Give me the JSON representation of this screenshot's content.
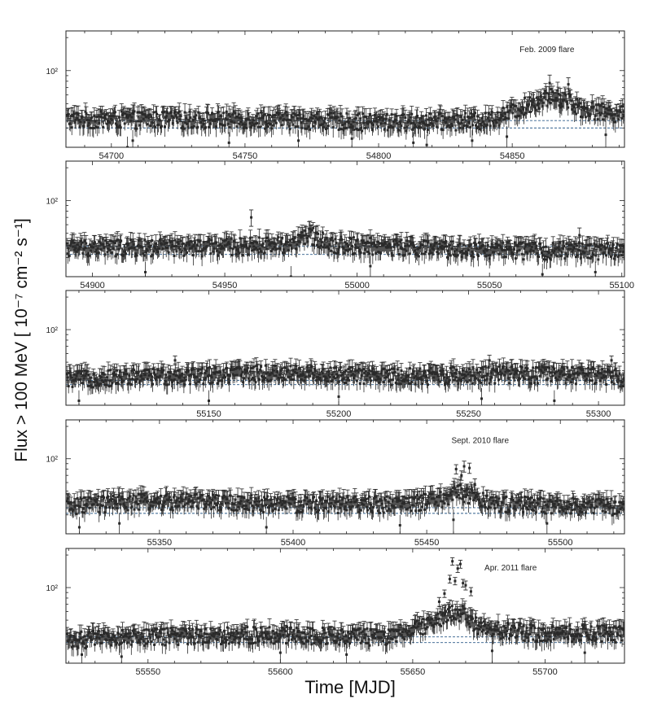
{
  "figure": {
    "ylabel": "Flux > 100 MeV [ 10⁻⁷ cm⁻² s⁻¹]",
    "xlabel": "Time [MJD]"
  },
  "colors": {
    "points": "#2a2a2a",
    "frame": "#222222",
    "dashed": "#2e5d8a"
  },
  "chart_data": [
    {
      "type": "scatter",
      "xlim": [
        54683,
        54892
      ],
      "ylog": true,
      "ytick_labels": [
        "10²"
      ],
      "ytick_values": [
        100
      ],
      "xticks": [
        54700,
        54750,
        54800,
        54850
      ],
      "annotation": "Feb. 2009 flare",
      "annotation_x": 54863,
      "annotation_y": 158,
      "dashed_levels": [
        35,
        30
      ],
      "baseline": [
        [
          54683,
          36
        ],
        [
          54760,
          36
        ],
        [
          54800,
          34
        ],
        [
          54840,
          35
        ],
        [
          54850,
          42
        ],
        [
          54858,
          52
        ],
        [
          54864,
          58
        ],
        [
          54870,
          55
        ],
        [
          54876,
          45
        ],
        [
          54892,
          40
        ]
      ],
      "flare_points": [
        [
          54864,
          77,
          14
        ],
        [
          54868,
          60,
          9
        ],
        [
          54871,
          75,
          11
        ],
        [
          54860,
          50,
          8
        ]
      ],
      "low_points": [
        [
          54706,
          20
        ],
        [
          54708,
          23
        ],
        [
          54744,
          22
        ],
        [
          54770,
          23
        ],
        [
          54790,
          24
        ],
        [
          54813,
          22
        ],
        [
          54818,
          21
        ],
        [
          54835,
          23
        ],
        [
          54848,
          25
        ],
        [
          54885,
          26
        ]
      ]
    },
    {
      "type": "scatter",
      "xlim": [
        54890,
        55101
      ],
      "ylog": true,
      "ytick_labels": [
        "10²"
      ],
      "ytick_values": [
        100
      ],
      "xticks": [
        54900,
        54950,
        55000,
        55050,
        55100
      ],
      "annotation": "",
      "annotation_x": 0,
      "annotation_y": 0,
      "dashed_levels": [
        38,
        32
      ],
      "baseline": [
        [
          54890,
          37
        ],
        [
          54940,
          37
        ],
        [
          54975,
          40
        ],
        [
          54983,
          48
        ],
        [
          54990,
          40
        ],
        [
          55030,
          36
        ],
        [
          55060,
          35
        ],
        [
          55101,
          35
        ]
      ],
      "flare_points": [
        [
          54960,
          70,
          12
        ],
        [
          55084,
          48,
          8
        ]
      ],
      "low_points": [
        [
          54920,
          22
        ],
        [
          54975,
          20
        ],
        [
          55005,
          25
        ],
        [
          55070,
          21
        ],
        [
          55090,
          22
        ]
      ]
    },
    {
      "type": "scatter",
      "xlim": [
        55095,
        55310
      ],
      "ylog": true,
      "ytick_labels": [
        "10²"
      ],
      "ytick_values": [
        100
      ],
      "xticks": [
        55150,
        55200,
        55250,
        55300
      ],
      "annotation": "",
      "annotation_x": 0,
      "annotation_y": 0,
      "dashed_levels": [
        34,
        31
      ],
      "baseline": [
        [
          55095,
          35
        ],
        [
          55140,
          38
        ],
        [
          55180,
          40
        ],
        [
          55220,
          37
        ],
        [
          55260,
          39
        ],
        [
          55300,
          38
        ],
        [
          55310,
          36
        ]
      ],
      "flare_points": [
        [
          55137,
          52,
          5
        ],
        [
          55258,
          52,
          6
        ],
        [
          55305,
          52,
          5
        ]
      ],
      "low_points": [
        [
          55100,
          22
        ],
        [
          55150,
          22
        ],
        [
          55200,
          24
        ],
        [
          55255,
          23
        ],
        [
          55283,
          22
        ]
      ]
    },
    {
      "type": "scatter",
      "xlim": [
        55315,
        55524
      ],
      "ylog": true,
      "ytick_labels": [
        "10²"
      ],
      "ytick_values": [
        100
      ],
      "xticks": [
        55350,
        55400,
        55450,
        55500
      ],
      "annotation": "Sept. 2010 flare",
      "annotation_x": 55470,
      "annotation_y": 150,
      "dashed_levels": [
        35,
        31
      ],
      "baseline": [
        [
          55315,
          36
        ],
        [
          55340,
          40
        ],
        [
          55360,
          40
        ],
        [
          55400,
          38
        ],
        [
          55440,
          38
        ],
        [
          55456,
          42
        ],
        [
          55462,
          50
        ],
        [
          55468,
          44
        ],
        [
          55475,
          38
        ],
        [
          55524,
          36
        ]
      ],
      "flare_points": [
        [
          55461,
          80,
          8
        ],
        [
          55464,
          85,
          10
        ],
        [
          55466,
          82,
          9
        ],
        [
          55463,
          70,
          7
        ],
        [
          55468,
          58,
          7
        ],
        [
          55465,
          52,
          6
        ]
      ],
      "low_points": [
        [
          55320,
          23
        ],
        [
          55335,
          25
        ],
        [
          55390,
          23
        ],
        [
          55440,
          24
        ],
        [
          55460,
          27
        ],
        [
          55495,
          25
        ]
      ]
    },
    {
      "type": "scatter",
      "xlim": [
        55519,
        55730
      ],
      "ylog": true,
      "ytick_labels": [
        "10²"
      ],
      "ytick_values": [
        100
      ],
      "xticks": [
        55550,
        55600,
        55650,
        55700
      ],
      "annotation": "Apr. 2011 flare",
      "annotation_x": 55687,
      "annotation_y": 155,
      "dashed_levels": [
        35,
        31
      ],
      "baseline": [
        [
          55519,
          33
        ],
        [
          55560,
          36
        ],
        [
          55600,
          37
        ],
        [
          55640,
          35
        ],
        [
          55655,
          44
        ],
        [
          55662,
          55
        ],
        [
          55668,
          60
        ],
        [
          55675,
          42
        ],
        [
          55700,
          38
        ],
        [
          55730,
          38
        ]
      ],
      "flare_points": [
        [
          55665,
          175,
          14
        ],
        [
          55667,
          150,
          12
        ],
        [
          55668,
          165,
          14
        ],
        [
          55664,
          120,
          10
        ],
        [
          55666,
          115,
          9
        ],
        [
          55670,
          105,
          10
        ],
        [
          55672,
          92,
          8
        ],
        [
          55669,
          110,
          9
        ],
        [
          55662,
          88,
          7
        ],
        [
          55660,
          74,
          7
        ]
      ],
      "low_points": [
        [
          55525,
          24
        ],
        [
          55540,
          23
        ],
        [
          55600,
          25
        ],
        [
          55625,
          24
        ],
        [
          55680,
          26
        ],
        [
          55715,
          25
        ]
      ]
    }
  ]
}
